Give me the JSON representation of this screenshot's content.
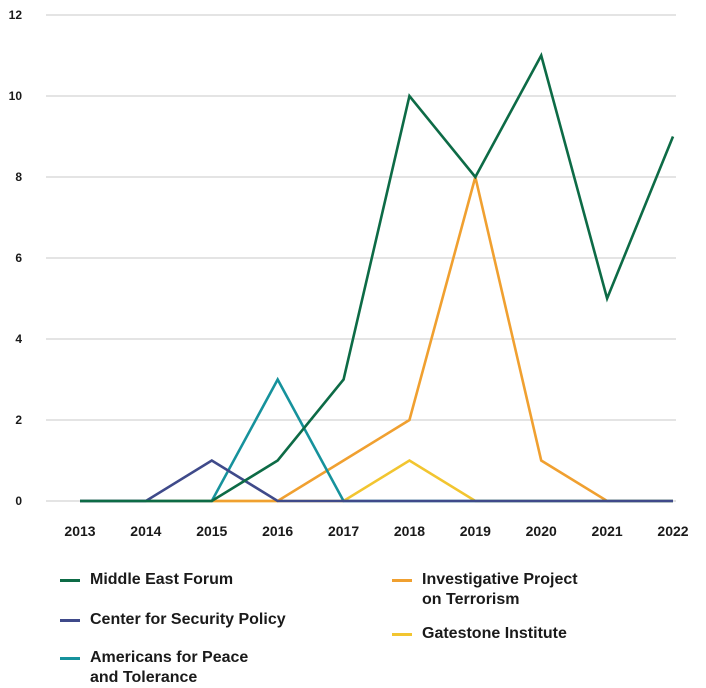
{
  "chart_data": {
    "type": "line",
    "x": [
      2013,
      2014,
      2015,
      2016,
      2017,
      2018,
      2019,
      2020,
      2021,
      2022
    ],
    "x_tick_labels": [
      "2013",
      "2014",
      "2015",
      "2016",
      "2017",
      "2018",
      "2019",
      "2020",
      "2021",
      "2022"
    ],
    "ylim": [
      0,
      12
    ],
    "y_ticks": [
      0,
      2,
      4,
      6,
      8,
      10,
      12
    ],
    "y_tick_labels": [
      "0",
      "2",
      "4",
      "6",
      "8",
      "10",
      "12"
    ],
    "grid": "horizontal",
    "legend_position": "bottom",
    "series": [
      {
        "name": "Middle East Forum",
        "color": "#0d6b46",
        "values": [
          0,
          0,
          0,
          1,
          3,
          10,
          8,
          11,
          5,
          9
        ]
      },
      {
        "name": "Center for Security Policy",
        "color": "#3f4a8a",
        "values": [
          0,
          0,
          1,
          0,
          0,
          0,
          0,
          0,
          0,
          0
        ]
      },
      {
        "name": "Americans for Peace and Tolerance",
        "color": "#16929c",
        "values": [
          0,
          0,
          0,
          3,
          0,
          0,
          0,
          0,
          0,
          0
        ]
      },
      {
        "name": "Investigative Project on Terrorism",
        "color": "#f0a030",
        "values": [
          0,
          0,
          0,
          0,
          1,
          2,
          8,
          1,
          0,
          0
        ]
      },
      {
        "name": "Gatestone Institute",
        "color": "#f2c530",
        "values": [
          0,
          0,
          0,
          0,
          0,
          1,
          0,
          0,
          0,
          0
        ]
      }
    ],
    "legend_lines": [
      [
        "Middle East Forum"
      ],
      [
        "Center for Security Policy"
      ],
      [
        "Americans for Peace",
        "and Tolerance"
      ],
      [
        "Investigative Project",
        "on Terrorism"
      ],
      [
        "Gatestone Institute"
      ]
    ]
  }
}
